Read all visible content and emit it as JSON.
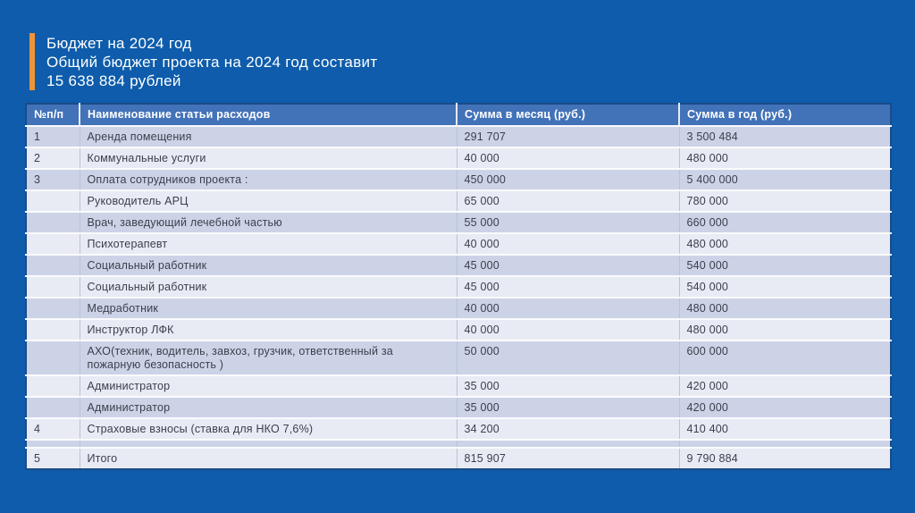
{
  "slide": {
    "background_color": "#0e5cab",
    "accent_color": "#ef9339",
    "title_lines": [
      "Бюджет на 2024 год",
      "Общий бюджет проекта на 2024 год составит",
      "15 638 884 рублей"
    ]
  },
  "table": {
    "header_color": "#4272b8",
    "row_color_odd": "#cdd3e7",
    "row_color_even": "#e9ebf4",
    "headers": [
      "№п/п",
      "Наименование статьи расходов",
      "Сумма в месяц (руб.)",
      "Сумма в год (руб.)"
    ],
    "rows": [
      {
        "num": "1",
        "name": "Аренда помещения",
        "month": "291 707",
        "year": "3 500 484"
      },
      {
        "num": "2",
        "name": "Коммунальные услуги",
        "month": "40 000",
        "year": "480 000"
      },
      {
        "num": "3",
        "name": "Оплата сотрудников проекта :",
        "month": "450 000",
        "year": "5 400 000"
      },
      {
        "num": "",
        "name": "Руководитель АРЦ",
        "month": "65 000",
        "year": "780 000"
      },
      {
        "num": "",
        "name": "Врач, заведующий лечебной частью",
        "month": "55 000",
        "year": "660 000"
      },
      {
        "num": "",
        "name": "Психотерапевт",
        "month": "40 000",
        "year": "480 000"
      },
      {
        "num": "",
        "name": "Социальный работник",
        "month": "45 000",
        "year": "540 000"
      },
      {
        "num": "",
        "name": "Социальный работник",
        "month": "45 000",
        "year": "540 000"
      },
      {
        "num": "",
        "name": "Медработник",
        "month": "40 000",
        "year": "480 000"
      },
      {
        "num": "",
        "name": "Инструктор ЛФК",
        "month": "40 000",
        "year": "480 000"
      },
      {
        "num": "",
        "name": "АХО(техник, водитель, завхоз, грузчик, ответственный за пожарную безопасность )",
        "month": "50 000",
        "year": "600 000"
      },
      {
        "num": "",
        "name": "Администратор",
        "month": "35 000",
        "year": "420 000"
      },
      {
        "num": "",
        "name": "Администратор",
        "month": "35 000",
        "year": "420 000"
      },
      {
        "num": "4",
        "name": "Страховые взносы (ставка для НКО 7,6%)",
        "month": "34 200",
        "year": "410 400"
      },
      {
        "num": "",
        "name": "",
        "month": "",
        "year": ""
      },
      {
        "num": "5",
        "name": "Итого",
        "month": "815 907",
        "year": "9 790 884"
      }
    ]
  }
}
